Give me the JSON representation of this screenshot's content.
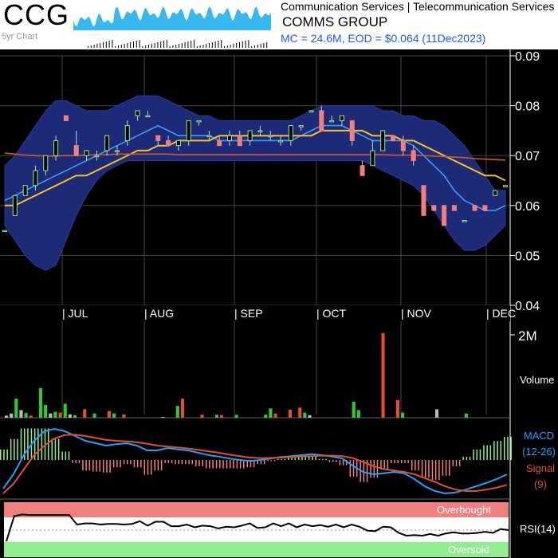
{
  "header": {
    "ticker": "CCG",
    "mini_chart_label": "5yr Chart",
    "sector": "Communication Services | Telecommunication Services",
    "company": "COMMS GROUP",
    "market_info": "MC = 24.6M, EOD = $0.064 (11Dec2023)"
  },
  "colors": {
    "background": "#000000",
    "bollinger_band": "#1c2a78",
    "up_candle": "#90ee90",
    "down_candle": "#f08080",
    "sma_short": "#3b9cf0",
    "sma_mid": "#f5c21b",
    "sma_long": "#d2572a",
    "macd": "#1ea0ff",
    "signal": "#e0502a",
    "overbought": "#f08080",
    "oversold": "#90ee90",
    "market_info": "#1a57ff"
  },
  "chart_data": [
    {
      "type": "candlestick",
      "title": "",
      "x_labels": [
        "| JUL",
        "| AUG",
        "| SEP",
        "| OCT",
        "| NOV",
        "| DEC"
      ],
      "y_ticks": [
        "0.09",
        "0.08",
        "0.07",
        "0.06",
        "0.05",
        "0.04"
      ],
      "ylim": [
        0.04,
        0.09
      ],
      "grid": true,
      "candles": [
        [
          0.055,
          0.055,
          0.055,
          0.055
        ],
        [
          0.058,
          0.062,
          0.058,
          0.062
        ],
        [
          0.062,
          0.064,
          0.062,
          0.064
        ],
        [
          0.064,
          0.068,
          0.063,
          0.067
        ],
        [
          0.067,
          0.07,
          0.066,
          0.07
        ],
        [
          0.07,
          0.074,
          0.069,
          0.073
        ],
        [
          0.078,
          0.078,
          0.077,
          0.077
        ],
        [
          0.072,
          0.075,
          0.07,
          0.07
        ],
        [
          0.07,
          0.071,
          0.069,
          0.071
        ],
        [
          0.07,
          0.071,
          0.069,
          0.07
        ],
        [
          0.071,
          0.074,
          0.07,
          0.074
        ],
        [
          0.071,
          0.072,
          0.07,
          0.071
        ],
        [
          0.073,
          0.077,
          0.072,
          0.076
        ],
        [
          0.078,
          0.079,
          0.077,
          0.079
        ],
        [
          0.078,
          0.079,
          0.078,
          0.078
        ],
        [
          0.074,
          0.074,
          0.072,
          0.073
        ],
        [
          0.073,
          0.074,
          0.072,
          0.072
        ],
        [
          0.072,
          0.073,
          0.071,
          0.073
        ],
        [
          0.073,
          0.077,
          0.072,
          0.077
        ],
        [
          0.077,
          0.077,
          0.076,
          0.077
        ],
        [
          0.074,
          0.075,
          0.073,
          0.074
        ],
        [
          0.073,
          0.074,
          0.072,
          0.072
        ],
        [
          0.073,
          0.075,
          0.072,
          0.074
        ],
        [
          0.074,
          0.075,
          0.072,
          0.072
        ],
        [
          0.073,
          0.075,
          0.072,
          0.075
        ],
        [
          0.075,
          0.076,
          0.074,
          0.075
        ],
        [
          0.074,
          0.075,
          0.073,
          0.074
        ],
        [
          0.073,
          0.074,
          0.072,
          0.073
        ],
        [
          0.073,
          0.076,
          0.072,
          0.076
        ],
        [
          0.076,
          0.076,
          0.075,
          0.076
        ],
        [
          0.079,
          0.079,
          0.079,
          0.079
        ],
        [
          0.079,
          0.08,
          0.075,
          0.075
        ],
        [
          0.077,
          0.078,
          0.077,
          0.077
        ],
        [
          0.077,
          0.078,
          0.076,
          0.078
        ],
        [
          0.077,
          0.077,
          0.072,
          0.073
        ],
        [
          0.068,
          0.069,
          0.066,
          0.066
        ],
        [
          0.068,
          0.073,
          0.068,
          0.071
        ],
        [
          0.071,
          0.075,
          0.071,
          0.075
        ],
        [
          0.074,
          0.074,
          0.073,
          0.073
        ],
        [
          0.073,
          0.074,
          0.07,
          0.071
        ],
        [
          0.071,
          0.072,
          0.068,
          0.069
        ],
        [
          0.064,
          0.064,
          0.058,
          0.058
        ],
        [
          0.06,
          0.06,
          0.059,
          0.059
        ],
        [
          0.06,
          0.06,
          0.056,
          0.056
        ],
        [
          0.06,
          0.06,
          0.059,
          0.059
        ],
        [
          0.057,
          0.057,
          0.057,
          0.057
        ],
        [
          0.06,
          0.06,
          0.059,
          0.059
        ],
        [
          0.06,
          0.06,
          0.059,
          0.059
        ],
        [
          0.062,
          0.063,
          0.062,
          0.063
        ],
        [
          0.064,
          0.064,
          0.064,
          0.064
        ]
      ],
      "series": [
        {
          "name": "",
          "values": [
            0.061,
            0.062,
            0.063,
            0.064,
            0.065,
            0.066,
            0.067,
            0.068,
            0.069,
            0.07,
            0.071,
            0.072,
            0.073,
            0.074,
            0.075,
            0.076,
            0.075,
            0.074,
            0.074,
            0.074,
            0.074,
            0.073,
            0.073,
            0.073,
            0.073,
            0.073,
            0.073,
            0.073,
            0.073,
            0.074,
            0.075,
            0.076,
            0.076,
            0.076,
            0.075,
            0.074,
            0.073,
            0.073,
            0.073,
            0.073,
            0.072,
            0.07,
            0.068,
            0.066,
            0.063,
            0.061,
            0.06,
            0.059,
            0.059,
            0.06
          ]
        },
        {
          "name": "",
          "values": [
            0.06,
            0.06,
            0.061,
            0.062,
            0.063,
            0.064,
            0.065,
            0.066,
            0.066,
            0.067,
            0.068,
            0.069,
            0.07,
            0.071,
            0.071,
            0.072,
            0.072,
            0.073,
            0.073,
            0.073,
            0.073,
            0.074,
            0.074,
            0.074,
            0.074,
            0.074,
            0.074,
            0.074,
            0.074,
            0.074,
            0.074,
            0.075,
            0.075,
            0.075,
            0.075,
            0.075,
            0.074,
            0.074,
            0.074,
            0.073,
            0.073,
            0.072,
            0.071,
            0.07,
            0.069,
            0.068,
            0.067,
            0.066,
            0.066,
            0.065
          ]
        },
        {
          "name": "",
          "values": [
            0.0705,
            0.0703,
            0.0701,
            0.07,
            0.0699,
            0.0699,
            0.07,
            0.07,
            0.0701,
            0.0702,
            0.0702,
            0.0703,
            0.0703,
            0.0703,
            0.0703,
            0.0703,
            0.0703,
            0.0702,
            0.0702,
            0.0702,
            0.0702,
            0.0702,
            0.0702,
            0.0702,
            0.0702,
            0.0702,
            0.0702,
            0.0702,
            0.0702,
            0.0702,
            0.0702,
            0.0702,
            0.0702,
            0.0702,
            0.0702,
            0.0702,
            0.0702,
            0.0702,
            0.0701,
            0.0701,
            0.0701,
            0.07,
            0.0699,
            0.0698,
            0.0697,
            0.0696,
            0.0694,
            0.0693,
            0.0692,
            0.0691
          ]
        }
      ],
      "bollinger_upper": [
        0.068,
        0.07,
        0.073,
        0.076,
        0.079,
        0.081,
        0.081,
        0.08,
        0.079,
        0.079,
        0.079,
        0.08,
        0.081,
        0.082,
        0.082,
        0.082,
        0.081,
        0.08,
        0.079,
        0.078,
        0.078,
        0.077,
        0.077,
        0.077,
        0.077,
        0.077,
        0.077,
        0.077,
        0.077,
        0.078,
        0.079,
        0.08,
        0.08,
        0.08,
        0.08,
        0.08,
        0.08,
        0.079,
        0.079,
        0.078,
        0.078,
        0.077,
        0.077,
        0.076,
        0.074,
        0.072,
        0.069,
        0.066,
        0.063,
        0.063
      ],
      "bollinger_lower": [
        0.056,
        0.053,
        0.05,
        0.048,
        0.047,
        0.048,
        0.053,
        0.058,
        0.062,
        0.065,
        0.067,
        0.068,
        0.069,
        0.069,
        0.069,
        0.069,
        0.069,
        0.069,
        0.069,
        0.069,
        0.069,
        0.069,
        0.069,
        0.069,
        0.069,
        0.069,
        0.069,
        0.069,
        0.069,
        0.069,
        0.069,
        0.069,
        0.069,
        0.069,
        0.069,
        0.069,
        0.068,
        0.067,
        0.066,
        0.065,
        0.064,
        0.062,
        0.059,
        0.056,
        0.053,
        0.051,
        0.051,
        0.052,
        0.054,
        0.056
      ]
    },
    {
      "type": "bar",
      "title": "",
      "ylabel": "Volume",
      "y_ticks": [
        "2M"
      ],
      "ylim": [
        0,
        2000000
      ],
      "values": [
        50000,
        100000,
        450000,
        180000,
        110000,
        50000,
        0,
        700000,
        300000,
        100000,
        140000,
        120000,
        330000,
        80000,
        60000,
        0,
        200000,
        0,
        100000,
        0,
        0,
        160000,
        100000,
        0,
        80000,
        0,
        0,
        0,
        0,
        0,
        0,
        0,
        20000,
        0,
        0,
        280000,
        450000,
        0,
        0,
        0,
        70000,
        0,
        0,
        70000,
        60000,
        0,
        0,
        70000,
        0,
        0,
        0,
        0,
        0,
        70000,
        220000,
        100000,
        0,
        0,
        190000,
        0,
        240000,
        120000,
        60000,
        0,
        0,
        0,
        0,
        0,
        0,
        0,
        0,
        380000,
        180000,
        0,
        0,
        0,
        0,
        2000000,
        0,
        0,
        420000,
        120000,
        0,
        0,
        0,
        0,
        0,
        0,
        200000,
        0,
        0,
        0,
        0,
        0,
        100000,
        0,
        0,
        0,
        0,
        0,
        0,
        0,
        0
      ],
      "colors_by_direction": [
        "gray",
        "gray",
        "green",
        "gray",
        "green",
        "red",
        "gray",
        "green",
        "green",
        "gray",
        "green",
        "red",
        "green",
        "gray",
        "green",
        "gray",
        "red",
        "gray",
        "green",
        "gray",
        "gray",
        "red",
        "green",
        "gray",
        "red",
        "gray",
        "gray",
        "gray",
        "gray",
        "gray",
        "gray",
        "gray",
        "gray",
        "gray",
        "gray",
        "green",
        "red",
        "gray",
        "gray",
        "gray",
        "red",
        "gray",
        "gray",
        "green",
        "red",
        "gray",
        "gray",
        "green",
        "gray",
        "gray",
        "gray",
        "gray",
        "gray",
        "green",
        "green",
        "red",
        "gray",
        "gray",
        "red",
        "gray",
        "red",
        "green",
        "gray",
        "gray",
        "gray",
        "gray",
        "gray",
        "gray",
        "gray",
        "gray",
        "gray",
        "green",
        "green",
        "gray",
        "gray",
        "gray",
        "gray",
        "red",
        "gray",
        "gray",
        "red",
        "green",
        "gray",
        "gray",
        "gray",
        "gray",
        "gray",
        "gray",
        "gray",
        "gray",
        "gray",
        "gray",
        "gray",
        "gray",
        "green",
        "gray",
        "gray",
        "gray",
        "gray",
        "gray",
        "gray",
        "gray",
        "gray"
      ]
    },
    {
      "type": "line",
      "title": "",
      "legend": [
        "MACD",
        "(12-26)",
        "Signal",
        "(9)"
      ],
      "series": [
        {
          "name": "MACD",
          "values": [
            -0.006,
            -0.003,
            0.001,
            0.004,
            0.006,
            0.0065,
            0.006,
            0.005,
            0.004,
            0.0035,
            0.003,
            0.0033,
            0.0035,
            0.003,
            0.002,
            0.002,
            0.0025,
            0.0022,
            0.002,
            0.0015,
            0.001,
            0.0007,
            0.0003,
            0.0,
            -0.0002,
            0.0,
            0.0003,
            0.0006,
            0.0008,
            0.001,
            0.0012,
            0.001,
            0.0007,
            0.0003,
            -0.0012,
            -0.0025,
            -0.003,
            -0.0028,
            -0.0025,
            -0.0028,
            -0.004,
            -0.0055,
            -0.0065,
            -0.007,
            -0.0068,
            -0.0062,
            -0.0055,
            -0.0048,
            -0.004,
            -0.003
          ]
        },
        {
          "name": "Signal",
          "values": [
            -0.007,
            -0.005,
            -0.002,
            0.001,
            0.003,
            0.0045,
            0.0052,
            0.0053,
            0.005,
            0.0046,
            0.0042,
            0.004,
            0.0039,
            0.0037,
            0.0034,
            0.003,
            0.0028,
            0.0026,
            0.0024,
            0.0021,
            0.0018,
            0.0015,
            0.0011,
            0.0008,
            0.0005,
            0.0004,
            0.0004,
            0.0005,
            0.0006,
            0.0007,
            0.0008,
            0.0009,
            0.0009,
            0.0008,
            0.0004,
            -0.0004,
            -0.0013,
            -0.0019,
            -0.0022,
            -0.0025,
            -0.003,
            -0.0038,
            -0.0046,
            -0.0055,
            -0.0062,
            -0.0065,
            -0.0065,
            -0.0062,
            -0.0058,
            -0.0052
          ]
        }
      ]
    },
    {
      "type": "line",
      "title": "",
      "legend": [
        "RSI(14)"
      ],
      "labels": {
        "overbought": "Overbought",
        "oversold": "Oversold"
      },
      "ylim": [
        0,
        100
      ],
      "overbought_level": 70,
      "oversold_level": 30,
      "series": [
        {
          "name": "RSI(14)",
          "values": [
            30,
            75,
            78,
            77,
            77,
            77,
            77,
            77,
            77,
            60,
            62,
            62,
            60,
            61,
            61,
            60,
            61,
            66,
            58,
            65,
            65,
            57,
            57,
            60,
            55,
            58,
            57,
            53,
            56,
            55,
            58,
            62,
            54,
            55,
            62,
            57,
            62,
            55,
            60,
            57,
            59,
            56,
            60,
            55,
            60,
            56,
            49,
            48,
            56,
            55,
            45,
            40,
            41,
            40,
            43,
            40,
            44,
            46,
            44,
            44,
            45,
            47,
            45,
            52,
            50
          ]
        }
      ]
    }
  ]
}
